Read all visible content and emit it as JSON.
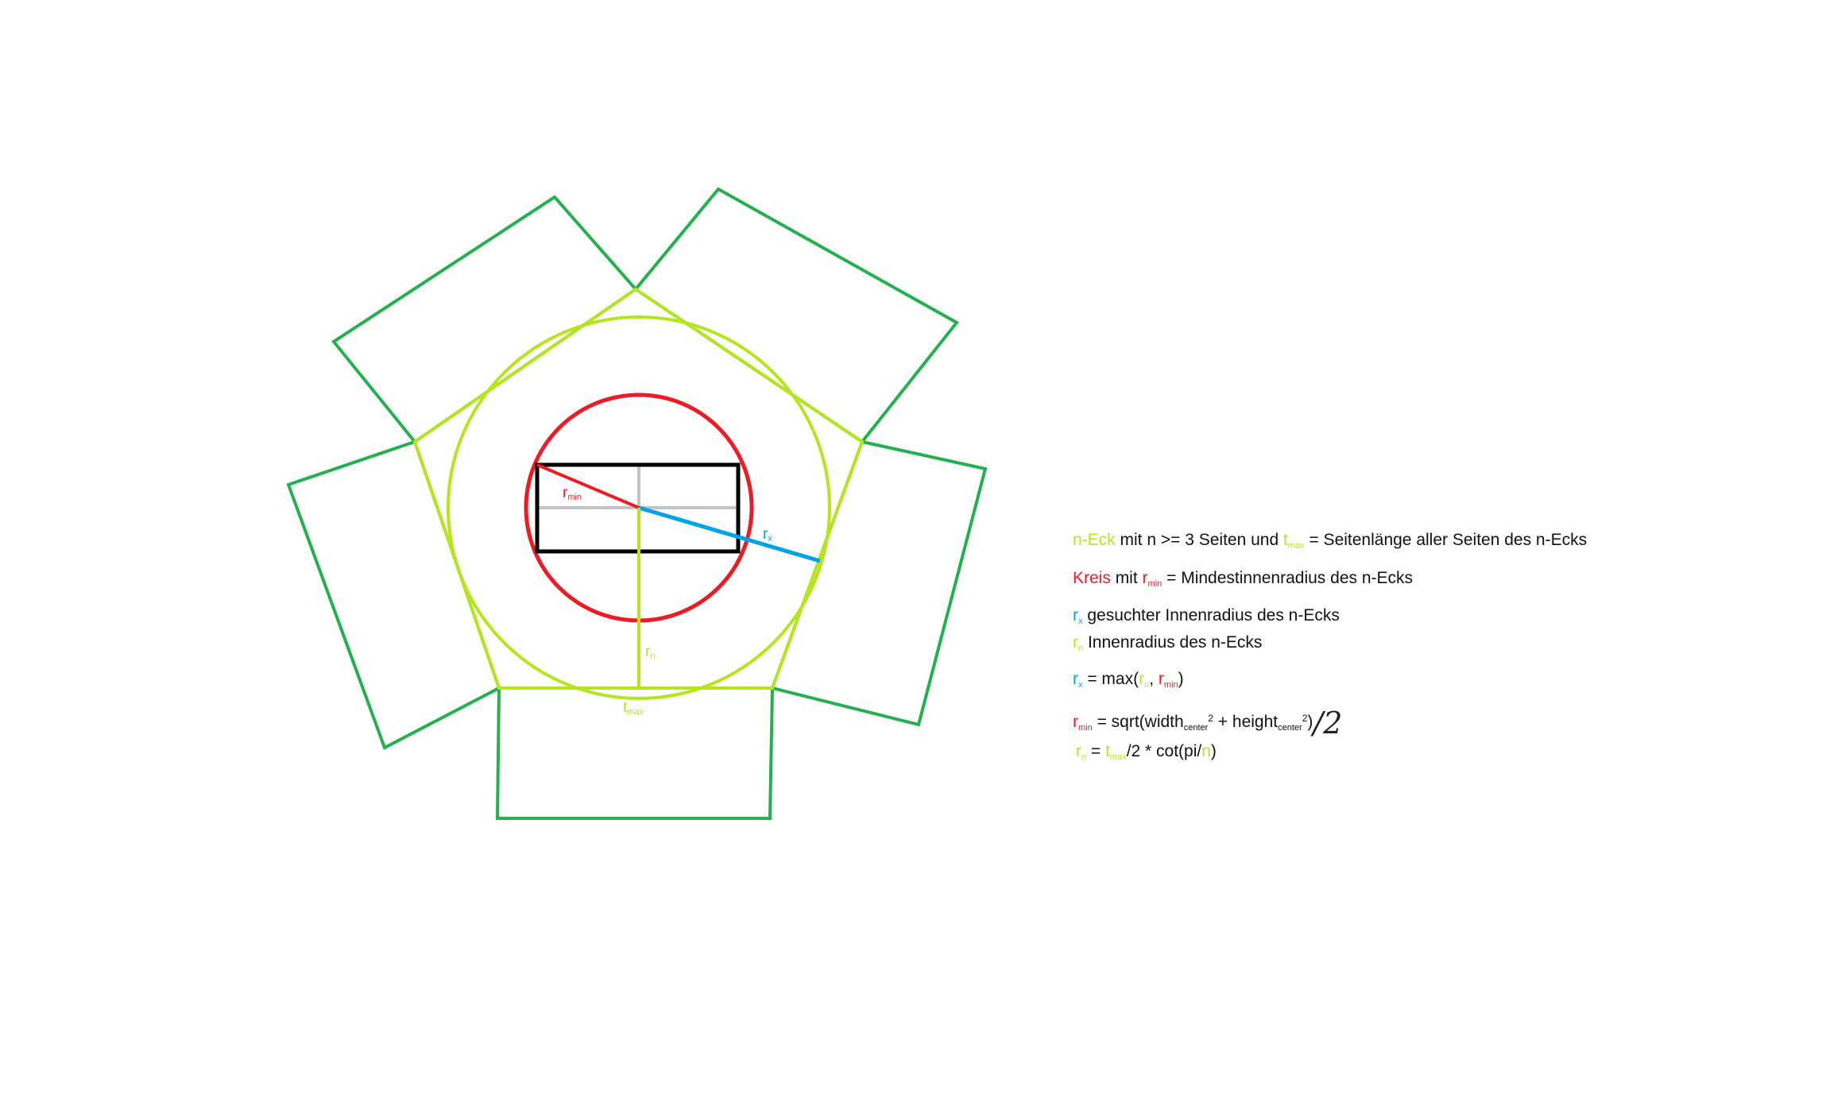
{
  "colors": {
    "outer_squares": "#22b14c",
    "pentagon": "#b5e61d",
    "circle_min": "#ed1c24",
    "r_x": "#00a2e8",
    "rect": "#000000",
    "axes": "#c3c3c3",
    "text": "#111111"
  },
  "diagram": {
    "label_r_min": {
      "main": "r",
      "sub": "min"
    },
    "label_r_x": {
      "main": "r",
      "sub": "x"
    },
    "label_r_n": {
      "main": "r",
      "sub": "n"
    },
    "label_t_max": {
      "main": "t",
      "sub": "max"
    }
  },
  "legend": {
    "line1": {
      "neck": "n-Eck",
      "t1": " mit n >= 3 Seiten und ",
      "t_main": "t",
      "t_sub": "max",
      "t2": " = Seitenlänge aller Seiten des n-Ecks"
    },
    "line2": {
      "kreis": "Kreis",
      "t1": " mit ",
      "r_main": "r",
      "r_sub": "min",
      "t2": " = Mindestinnenradius des n-Ecks"
    },
    "line3": {
      "r_main": "r",
      "r_sub": "x",
      "t1": " gesuchter Innenradius des n-Ecks"
    },
    "line4": {
      "r_main": "r",
      "r_sub": "n",
      "t1": " Innenradius des n-Ecks"
    },
    "line5": {
      "r_main": "r",
      "r_sub": "x",
      "t1": " = max(",
      "rn_main": "r",
      "rn_sub": "n",
      "t2": ", ",
      "rmin_main": "r",
      "rmin_sub": "min",
      "t3": ")"
    },
    "line6": {
      "r_main": "r",
      "r_sub": "min",
      "t1": " = sqrt(width",
      "w_sub": "center",
      "w_sup": "2",
      "t2": " + height",
      "h_sub": "center",
      "h_sup": "2",
      "t3": ")",
      "hand": "/2"
    },
    "line7": {
      "r_main": "r",
      "r_sub": "n",
      "t1": " = ",
      "t_main": "t",
      "t_sub": "max",
      "t2": "/2 * cot(pi/",
      "n": "n",
      "t3": ")"
    }
  }
}
